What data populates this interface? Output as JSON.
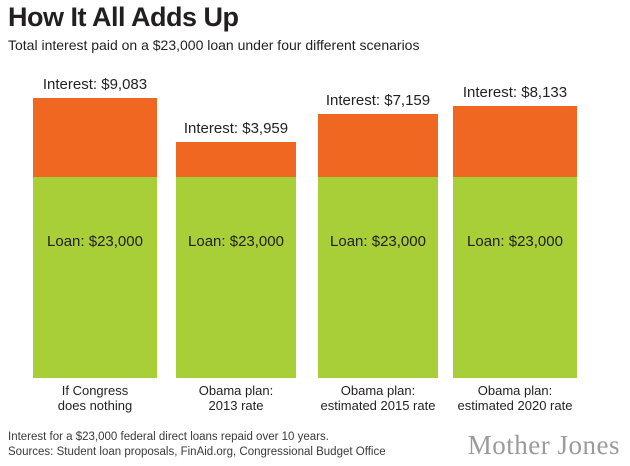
{
  "header": {
    "title": "How It All Adds Up",
    "subtitle": "Total interest paid on a $23,000 loan under four different scenarios"
  },
  "columns": [
    {
      "interest_label": "Interest: $9,083",
      "loan_label": "Loan: $23,000",
      "axis1": "If Congress",
      "axis2": "does nothing"
    },
    {
      "interest_label": "Interest: $3,959",
      "loan_label": "Loan: $23,000",
      "axis1": "Obama plan:",
      "axis2": "2013 rate"
    },
    {
      "interest_label": "Interest: $7,159",
      "loan_label": "Loan: $23,000",
      "axis1": "Obama plan:",
      "axis2": "estimated 2015 rate"
    },
    {
      "interest_label": "Interest: $8,133",
      "loan_label": "Loan: $23,000",
      "axis1": "Obama plan:",
      "axis2": "estimated 2020 rate"
    }
  ],
  "footer": {
    "note": "Interest for a $23,000 federal direct loans repaid over 10 years.",
    "sources": "Sources: Student loan proposals, FinAid.org, Congressional Budget Office",
    "logo": "Mother Jones"
  },
  "colors": {
    "interest_orange": "#f06722",
    "loan_green": "#a8ce38",
    "text": "#231f20",
    "logo_gray": "#9b9b9b"
  },
  "chart_data": {
    "type": "bar",
    "stacked": true,
    "title": "How It All Adds Up",
    "subtitle": "Total interest paid on a $23,000 loan under four different scenarios",
    "categories": [
      "If Congress does nothing",
      "Obama plan: 2013 rate",
      "Obama plan: estimated 2015 rate",
      "Obama plan: estimated 2020 rate"
    ],
    "series": [
      {
        "name": "Loan",
        "values": [
          23000,
          23000,
          23000,
          23000
        ],
        "color": "#a8ce38"
      },
      {
        "name": "Interest",
        "values": [
          9083,
          3959,
          7159,
          8133
        ],
        "color": "#f06722"
      }
    ],
    "value_unit": "USD",
    "legend": "none",
    "grid": false,
    "axis_labels_visible": false,
    "note": "Interest for a $23,000 federal direct loans repaid over 10 years.",
    "sources": "Sources: Student loan proposals, FinAid.org, Congressional Budget Office"
  }
}
